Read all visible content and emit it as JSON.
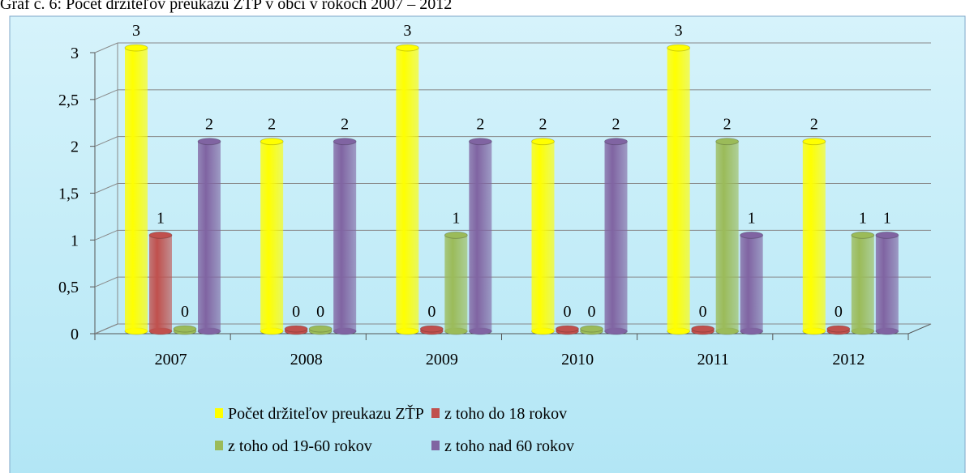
{
  "chart_data": {
    "type": "bar3d",
    "title": "Graf č. 6: Počet držiteľov preukazu ZŤP v obci v rokoch 2007 – 2012",
    "categories": [
      "2007",
      "2008",
      "2009",
      "2010",
      "2011",
      "2012"
    ],
    "series": [
      {
        "name": "Počet držiteľov preukazu ZŤP",
        "color": "#ffff00",
        "values": [
          3,
          2,
          3,
          2,
          3,
          2
        ]
      },
      {
        "name": "z toho do 18 rokov",
        "color": "#c0504d",
        "values": [
          1,
          0,
          0,
          0,
          0,
          0
        ]
      },
      {
        "name": "z toho od 19-60 rokov",
        "color": "#9bbb59",
        "values": [
          0,
          0,
          1,
          0,
          2,
          1
        ]
      },
      {
        "name": "z toho nad 60 rokov",
        "color": "#8064a2",
        "values": [
          2,
          2,
          2,
          2,
          1,
          1
        ]
      }
    ],
    "ylim": [
      0,
      3
    ],
    "yticks": [
      0,
      {
        "value": 0.5,
        "label": "0,5"
      },
      1,
      {
        "value": 1.5,
        "label": "1,5"
      },
      2,
      {
        "value": 2.5,
        "label": "2,5"
      },
      3
    ],
    "grid": true,
    "legend": "bottom"
  }
}
